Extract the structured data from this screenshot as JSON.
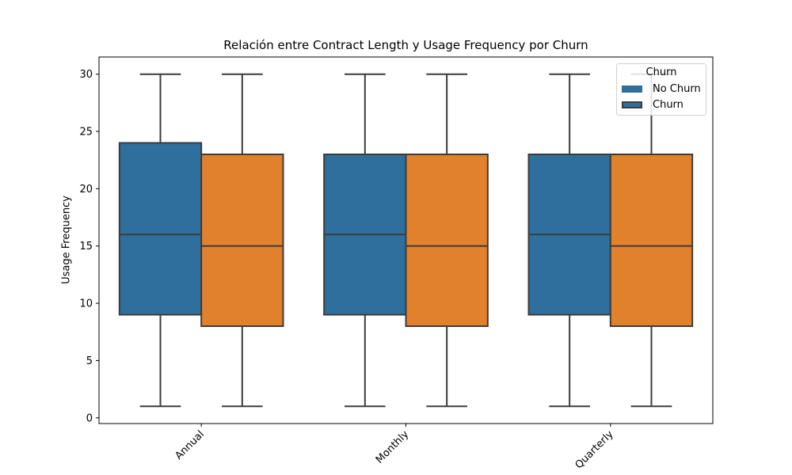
{
  "chart_data": {
    "type": "boxplot",
    "title": "Relación entre Contract Length y Usage Frequency por Churn",
    "xlabel": "",
    "ylabel": "Usage Frequency",
    "categories": [
      "Annual",
      "Monthly",
      "Quarterly"
    ],
    "ylim": [
      -0.5,
      31.5
    ],
    "yticks": [
      0,
      5,
      10,
      15,
      20,
      25,
      30
    ],
    "grid": false,
    "legend": {
      "title": "Churn",
      "placement": "top-right",
      "entries": [
        "No Churn",
        "Churn"
      ]
    },
    "series": [
      {
        "name": "No Churn",
        "color": "#2e6f9e",
        "boxes": [
          {
            "min": 1,
            "q1": 9,
            "median": 16,
            "q3": 24,
            "max": 30
          },
          {
            "min": 1,
            "q1": 9,
            "median": 16,
            "q3": 23,
            "max": 30
          },
          {
            "min": 1,
            "q1": 9,
            "median": 16,
            "q3": 23,
            "max": 30
          }
        ]
      },
      {
        "name": "Churn",
        "color": "#e1812c",
        "boxes": [
          {
            "min": 1,
            "q1": 8,
            "median": 15,
            "q3": 23,
            "max": 30
          },
          {
            "min": 1,
            "q1": 8,
            "median": 15,
            "q3": 23,
            "max": 30
          },
          {
            "min": 1,
            "q1": 8,
            "median": 15,
            "q3": 23,
            "max": 30
          }
        ]
      }
    ]
  }
}
